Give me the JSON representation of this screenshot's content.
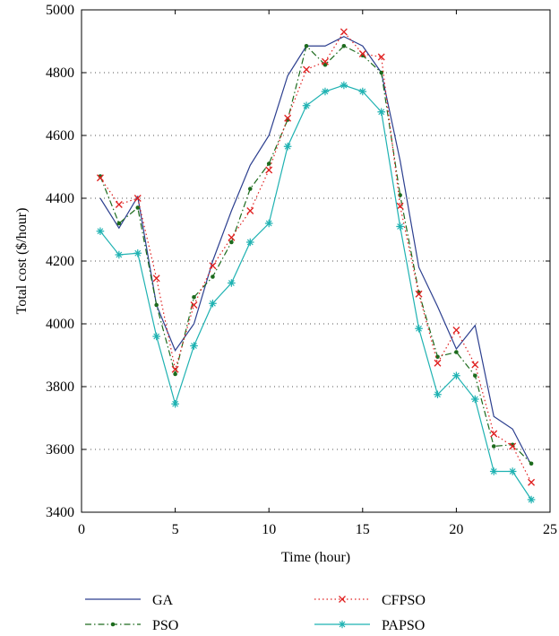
{
  "chart_data": {
    "type": "line",
    "xlabel": "Time (hour)",
    "ylabel": "Total cost ($/hour)",
    "xlim": [
      0,
      25
    ],
    "ylim": [
      3400,
      5000
    ],
    "xticks": [
      0,
      5,
      10,
      15,
      20,
      25
    ],
    "yticks": [
      3400,
      3600,
      3800,
      4000,
      4200,
      4400,
      4600,
      4800,
      5000
    ],
    "grid": "dotted horizontal",
    "legend_position": "bottom",
    "x": [
      1,
      2,
      3,
      4,
      5,
      6,
      7,
      8,
      9,
      10,
      11,
      12,
      13,
      14,
      15,
      16,
      17,
      18,
      19,
      20,
      21,
      22,
      23,
      24
    ],
    "series": [
      {
        "name": "GA",
        "color": "#2c3f8f",
        "style": "solid",
        "marker": "none",
        "values": [
          4400,
          4305,
          4405,
          4060,
          3915,
          4000,
          4200,
          4360,
          4505,
          4600,
          4790,
          4885,
          4885,
          4915,
          4885,
          4800,
          4520,
          4180,
          4055,
          3920,
          3995,
          3705,
          3665,
          3550
        ]
      },
      {
        "name": "PSO",
        "color": "#1d6b1d",
        "style": "dashdot",
        "marker": "dot",
        "values": [
          4470,
          4320,
          4370,
          4060,
          3840,
          4085,
          4150,
          4260,
          4430,
          4510,
          4650,
          4885,
          4825,
          4885,
          4855,
          4800,
          4410,
          4100,
          3895,
          3910,
          3835,
          3610,
          3615,
          3555
        ]
      },
      {
        "name": "CFPSO",
        "color": "#e02020",
        "style": "dotted",
        "marker": "x",
        "values": [
          4465,
          4380,
          4400,
          4145,
          3855,
          4060,
          4185,
          4275,
          4360,
          4490,
          4655,
          4810,
          4835,
          4930,
          4860,
          4850,
          4375,
          4095,
          3875,
          3980,
          3870,
          3650,
          3610,
          3495
        ]
      },
      {
        "name": "PAPSO",
        "color": "#1fb2b2",
        "style": "solid",
        "marker": "star",
        "values": [
          4295,
          4220,
          4225,
          3960,
          3745,
          3930,
          4065,
          4130,
          4260,
          4320,
          4565,
          4695,
          4740,
          4760,
          4740,
          4675,
          4310,
          3985,
          3775,
          3835,
          3760,
          3530,
          3530,
          3440
        ]
      }
    ]
  }
}
